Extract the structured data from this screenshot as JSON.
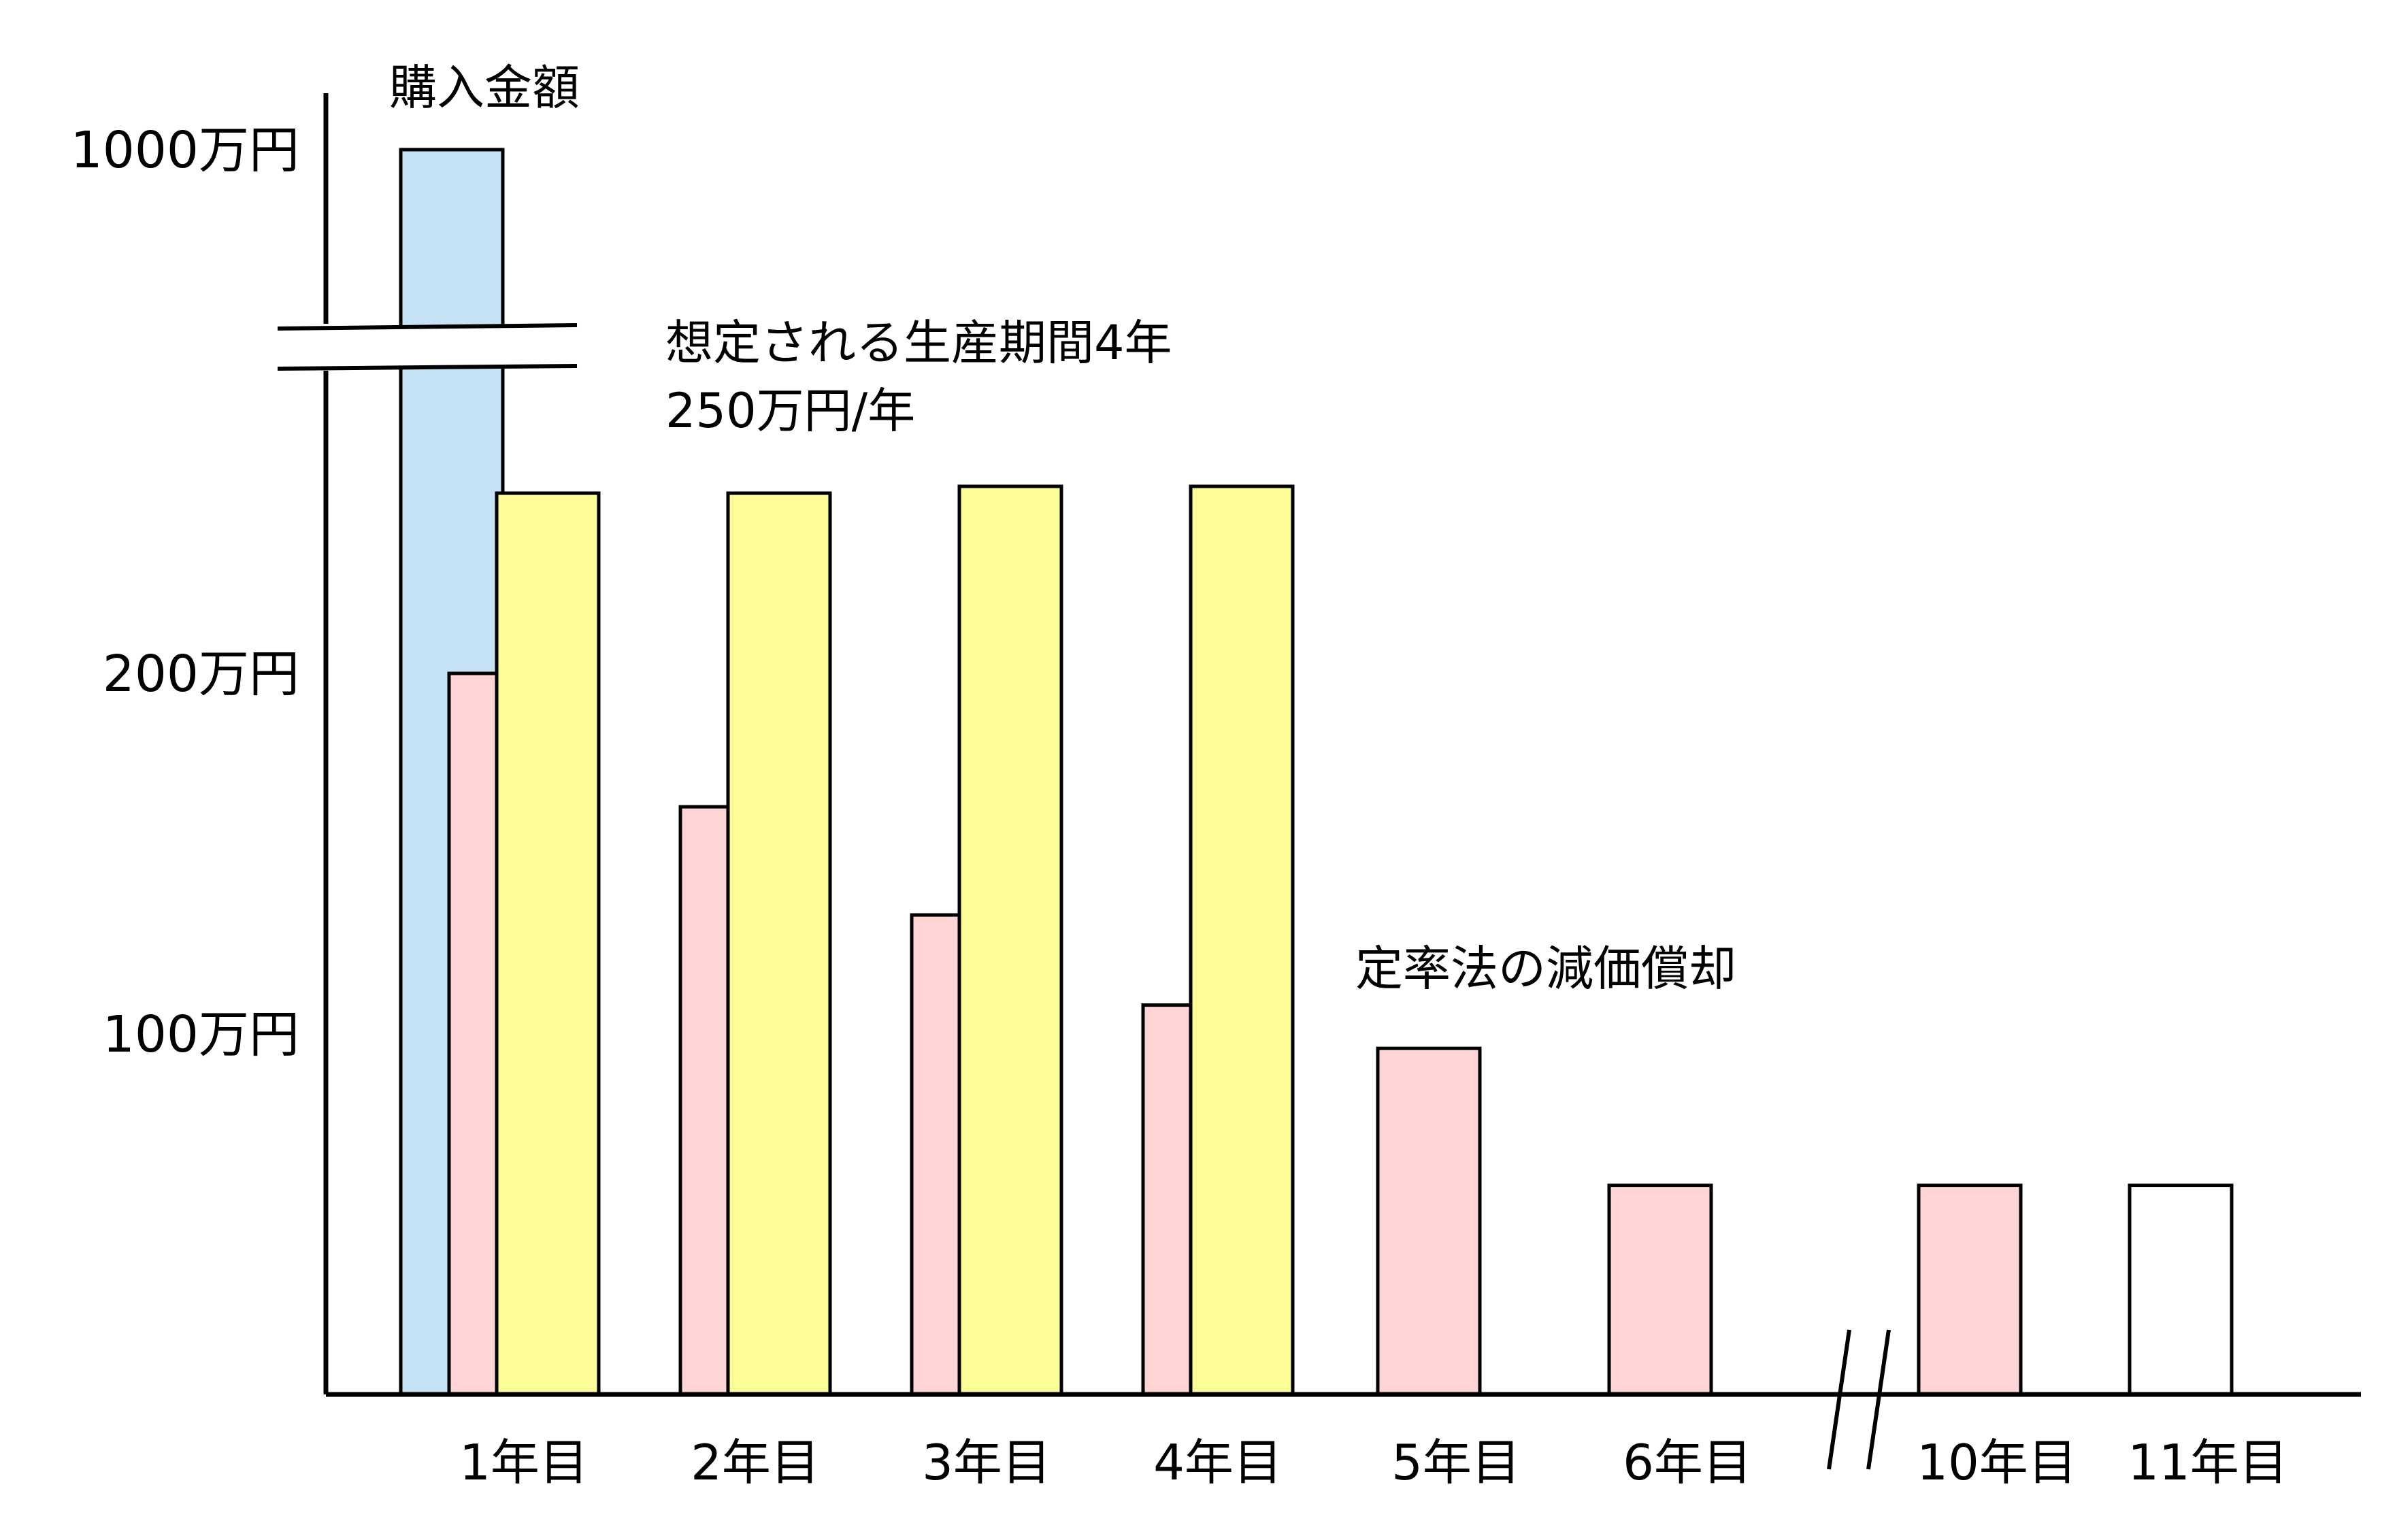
{
  "chart_data": {
    "type": "bar",
    "title": "",
    "xlabel": "",
    "ylabel": "",
    "grid": false,
    "y_axis": {
      "broken": true,
      "ticks": [
        {
          "value": 100,
          "label": "100万円"
        },
        {
          "value": 200,
          "label": "200万円"
        },
        {
          "value": 1000,
          "label": "1000万円"
        }
      ]
    },
    "x_axis": {
      "broken_between": [
        "6年目",
        "10年目"
      ]
    },
    "categories": [
      "1年目",
      "2年目",
      "3年目",
      "4年目",
      "5年目",
      "6年目",
      "10年目",
      "11年目"
    ],
    "purchase": {
      "label": "購入金額",
      "category": "1年目",
      "value": 1000,
      "color": "#c5e3f4"
    },
    "production": {
      "label": "想定される生産期間4年",
      "sublabel": "250万円/年",
      "values": [
        250,
        250,
        250,
        250,
        null,
        null,
        null,
        null
      ],
      "color": "#fdfd98"
    },
    "depreciation": {
      "label": "定率法の減価償却",
      "values": [
        200,
        163,
        133,
        108,
        96,
        58,
        58,
        58
      ],
      "color": "#ffd4d4",
      "last_color": "#ffffff"
    }
  }
}
